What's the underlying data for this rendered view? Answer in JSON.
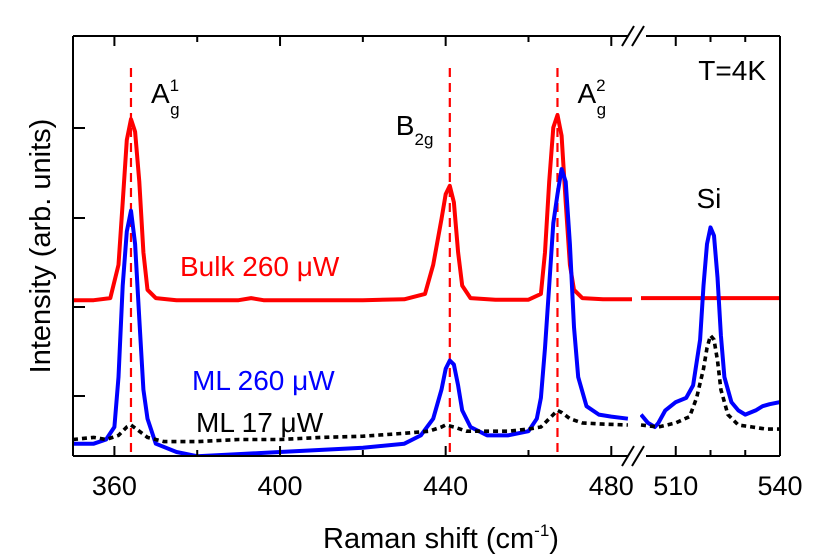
{
  "chart_data": {
    "type": "line",
    "xlabel": "Raman shift (cm",
    "xlabel_sup": "-1",
    "xlabel_end": ")",
    "ylabel": "Intensity (arb. units)",
    "broken_x_axis": true,
    "segments": [
      {
        "xlim": [
          350,
          485
        ],
        "ticks": [
          360,
          400,
          440,
          480
        ]
      },
      {
        "xlim": [
          500,
          540
        ],
        "ticks": [
          510,
          540
        ]
      }
    ],
    "ylim": [
      0,
      1
    ],
    "annotation": "T=4K",
    "peak_labels": [
      {
        "base": "A",
        "sup": "1",
        "sub": "g",
        "x": 364
      },
      {
        "base": "B",
        "sup": "",
        "sub": "2g",
        "x": 441
      },
      {
        "base": "A",
        "sup": "2",
        "sub": "g",
        "x": 467
      },
      {
        "base": "Si",
        "sup": "",
        "sub": "",
        "x": 520
      }
    ],
    "reference_lines_x": [
      364,
      441,
      467
    ],
    "series": [
      {
        "name": "Bulk 260 μW",
        "color": "#ff0000",
        "style": "solid",
        "points": [
          [
            350,
            0.365
          ],
          [
            355,
            0.365
          ],
          [
            359,
            0.37
          ],
          [
            361,
            0.45
          ],
          [
            362,
            0.6
          ],
          [
            363,
            0.75
          ],
          [
            364,
            0.8
          ],
          [
            365,
            0.77
          ],
          [
            366,
            0.65
          ],
          [
            367,
            0.48
          ],
          [
            368,
            0.39
          ],
          [
            370,
            0.37
          ],
          [
            375,
            0.365
          ],
          [
            390,
            0.365
          ],
          [
            393,
            0.37
          ],
          [
            396,
            0.365
          ],
          [
            420,
            0.365
          ],
          [
            430,
            0.367
          ],
          [
            435,
            0.38
          ],
          [
            437,
            0.45
          ],
          [
            439,
            0.56
          ],
          [
            440,
            0.62
          ],
          [
            441,
            0.64
          ],
          [
            442,
            0.6
          ],
          [
            443,
            0.48
          ],
          [
            444,
            0.4
          ],
          [
            446,
            0.37
          ],
          [
            452,
            0.366
          ],
          [
            460,
            0.366
          ],
          [
            463,
            0.38
          ],
          [
            464,
            0.48
          ],
          [
            465,
            0.65
          ],
          [
            466,
            0.78
          ],
          [
            467,
            0.81
          ],
          [
            468,
            0.76
          ],
          [
            469,
            0.6
          ],
          [
            470,
            0.45
          ],
          [
            471,
            0.39
          ],
          [
            473,
            0.37
          ],
          [
            478,
            0.367
          ],
          [
            485,
            0.367
          ],
          [
            500,
            0.37
          ],
          [
            510,
            0.37
          ],
          [
            520,
            0.37
          ],
          [
            530,
            0.37
          ],
          [
            540,
            0.37
          ]
        ]
      },
      {
        "name": "ML 260 μW",
        "color": "#0000ff",
        "style": "solid",
        "points": [
          [
            350,
            0.02
          ],
          [
            355,
            0.02
          ],
          [
            358,
            0.03
          ],
          [
            360,
            0.06
          ],
          [
            361,
            0.18
          ],
          [
            362,
            0.4
          ],
          [
            363,
            0.53
          ],
          [
            364,
            0.58
          ],
          [
            365,
            0.5
          ],
          [
            366,
            0.32
          ],
          [
            367,
            0.15
          ],
          [
            368,
            0.08
          ],
          [
            370,
            0.02
          ],
          [
            375,
            0.0
          ],
          [
            380,
            -0.01
          ],
          [
            390,
            -0.005
          ],
          [
            400,
            0.0
          ],
          [
            410,
            0.005
          ],
          [
            420,
            0.01
          ],
          [
            430,
            0.02
          ],
          [
            434,
            0.04
          ],
          [
            437,
            0.08
          ],
          [
            439,
            0.15
          ],
          [
            440,
            0.2
          ],
          [
            441,
            0.22
          ],
          [
            442,
            0.21
          ],
          [
            443,
            0.16
          ],
          [
            444,
            0.1
          ],
          [
            446,
            0.06
          ],
          [
            450,
            0.04
          ],
          [
            455,
            0.04
          ],
          [
            460,
            0.05
          ],
          [
            462,
            0.08
          ],
          [
            463,
            0.13
          ],
          [
            464,
            0.25
          ],
          [
            465,
            0.4
          ],
          [
            466,
            0.55
          ],
          [
            467,
            0.62
          ],
          [
            468,
            0.68
          ],
          [
            469,
            0.65
          ],
          [
            470,
            0.5
          ],
          [
            471,
            0.3
          ],
          [
            472,
            0.18
          ],
          [
            474,
            0.11
          ],
          [
            477,
            0.09
          ],
          [
            480,
            0.085
          ],
          [
            484,
            0.08
          ],
          [
            500,
            0.09
          ],
          [
            502,
            0.07
          ],
          [
            504,
            0.06
          ],
          [
            505,
            0.07
          ],
          [
            507,
            0.1
          ],
          [
            510,
            0.12
          ],
          [
            513,
            0.13
          ],
          [
            515,
            0.16
          ],
          [
            517,
            0.27
          ],
          [
            518,
            0.4
          ],
          [
            519,
            0.5
          ],
          [
            520,
            0.54
          ],
          [
            521,
            0.52
          ],
          [
            522,
            0.42
          ],
          [
            523,
            0.28
          ],
          [
            524,
            0.18
          ],
          [
            526,
            0.12
          ],
          [
            528,
            0.1
          ],
          [
            530,
            0.09
          ],
          [
            533,
            0.1
          ],
          [
            535,
            0.11
          ],
          [
            537,
            0.115
          ],
          [
            540,
            0.12
          ]
        ]
      },
      {
        "name": "ML 17 μW",
        "color": "#000000",
        "style": "dotted",
        "points": [
          [
            350,
            0.03
          ],
          [
            355,
            0.035
          ],
          [
            358,
            0.03
          ],
          [
            361,
            0.04
          ],
          [
            363,
            0.06
          ],
          [
            364,
            0.065
          ],
          [
            366,
            0.05
          ],
          [
            368,
            0.035
          ],
          [
            372,
            0.025
          ],
          [
            380,
            0.025
          ],
          [
            390,
            0.03
          ],
          [
            400,
            0.03
          ],
          [
            410,
            0.035
          ],
          [
            420,
            0.038
          ],
          [
            430,
            0.045
          ],
          [
            436,
            0.05
          ],
          [
            439,
            0.06
          ],
          [
            440,
            0.065
          ],
          [
            442,
            0.06
          ],
          [
            445,
            0.05
          ],
          [
            450,
            0.05
          ],
          [
            455,
            0.05
          ],
          [
            460,
            0.055
          ],
          [
            463,
            0.06
          ],
          [
            465,
            0.08
          ],
          [
            466,
            0.09
          ],
          [
            467,
            0.1
          ],
          [
            468,
            0.095
          ],
          [
            470,
            0.08
          ],
          [
            473,
            0.07
          ],
          [
            478,
            0.067
          ],
          [
            484,
            0.065
          ],
          [
            500,
            0.065
          ],
          [
            505,
            0.06
          ],
          [
            510,
            0.07
          ],
          [
            514,
            0.085
          ],
          [
            516,
            0.13
          ],
          [
            518,
            0.2
          ],
          [
            519,
            0.25
          ],
          [
            520,
            0.28
          ],
          [
            521,
            0.27
          ],
          [
            522,
            0.22
          ],
          [
            523,
            0.15
          ],
          [
            525,
            0.09
          ],
          [
            528,
            0.065
          ],
          [
            532,
            0.06
          ],
          [
            536,
            0.055
          ],
          [
            540,
            0.055
          ]
        ]
      }
    ],
    "legend": [
      {
        "text": "Bulk 260 μW",
        "color": "#ff0000"
      },
      {
        "text": "ML 260 μW",
        "color": "#0000ff"
      },
      {
        "text": "ML 17 μW",
        "color": "#000000"
      }
    ]
  }
}
